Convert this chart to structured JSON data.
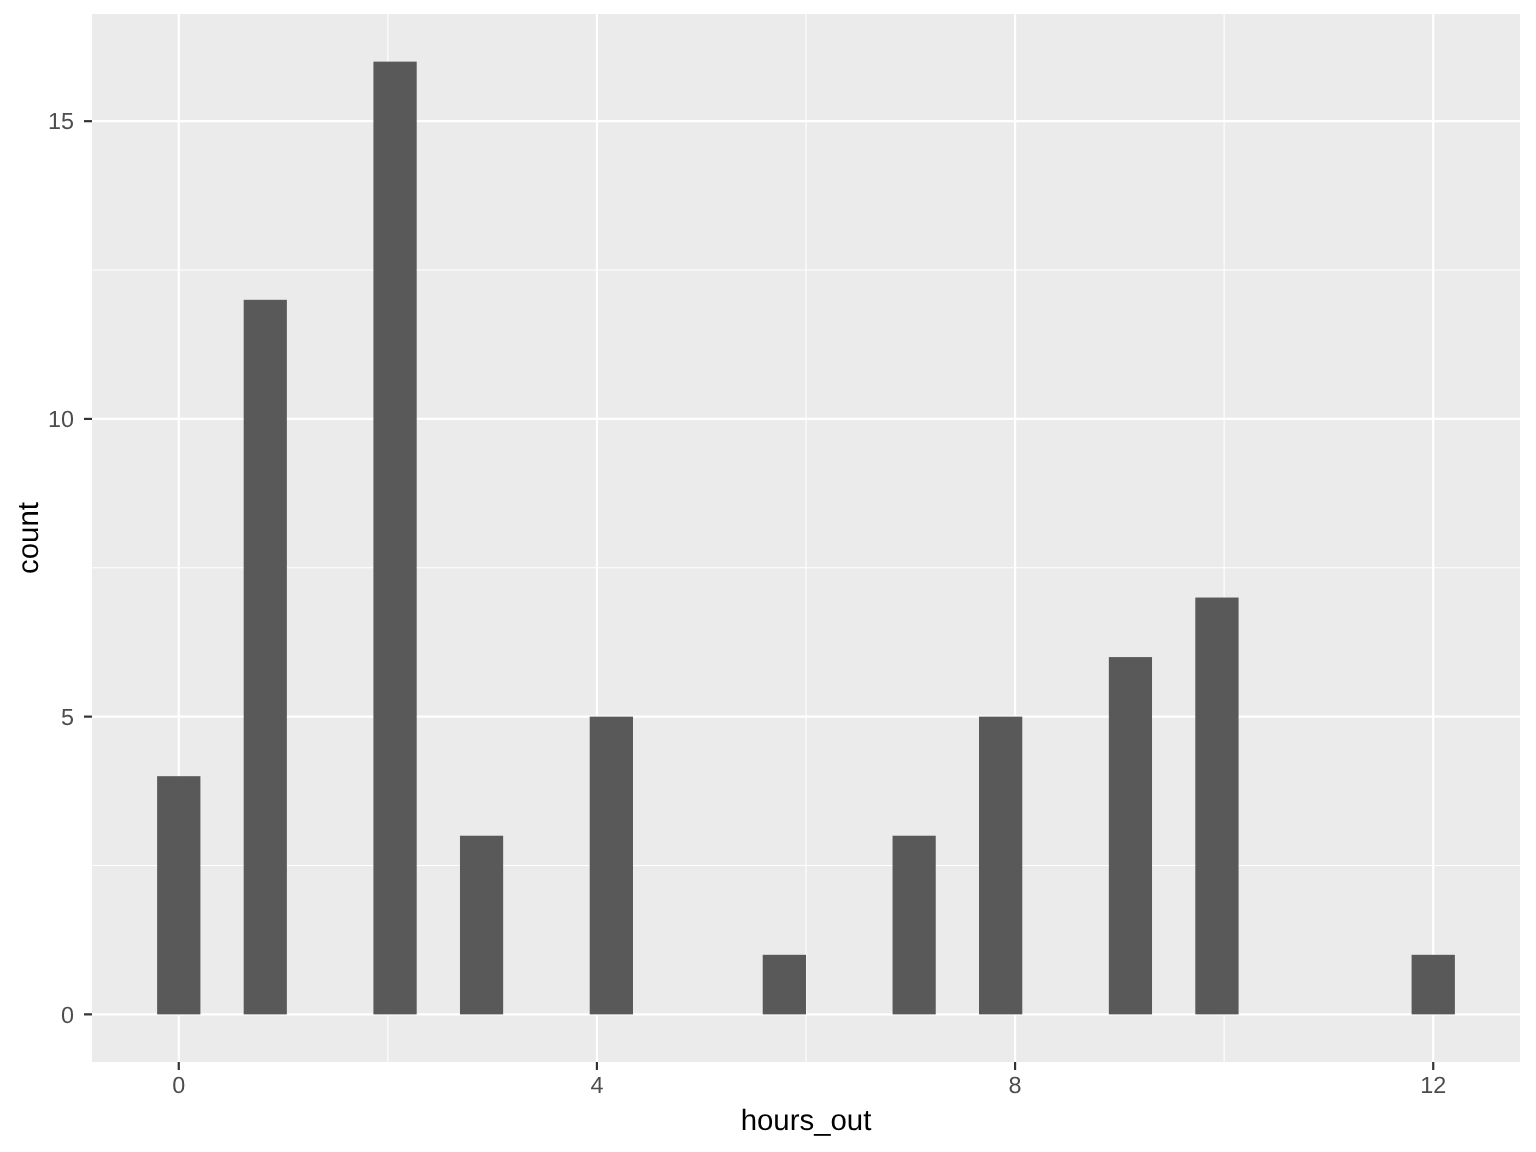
{
  "chart_data": {
    "type": "histogram",
    "bins": [
      -0.207,
      0.207,
      0.621,
      1.034,
      1.448,
      1.862,
      2.276,
      2.69,
      3.103,
      3.517,
      3.931,
      4.345,
      4.759,
      5.172,
      5.586,
      6,
      6.414,
      6.828,
      7.241,
      7.655,
      8.069,
      8.483,
      8.897,
      9.31,
      9.724,
      10.138,
      10.552,
      10.966,
      11.379,
      11.793,
      12.207
    ],
    "values": [
      4,
      0,
      12,
      0,
      0,
      16,
      0,
      3,
      0,
      0,
      5,
      0,
      0,
      0,
      1,
      0,
      0,
      3,
      0,
      5,
      0,
      0,
      6,
      0,
      7,
      0,
      0,
      0,
      0,
      1
    ],
    "color": "#595959",
    "xlabel": "hours_out",
    "ylabel": "count",
    "xlim": [
      -0.83,
      12.83
    ],
    "ylim": [
      -0.8,
      16.8
    ],
    "xticks": [
      0,
      4,
      8,
      12
    ],
    "yticks": [
      0,
      5,
      10,
      15
    ],
    "grid": true
  }
}
